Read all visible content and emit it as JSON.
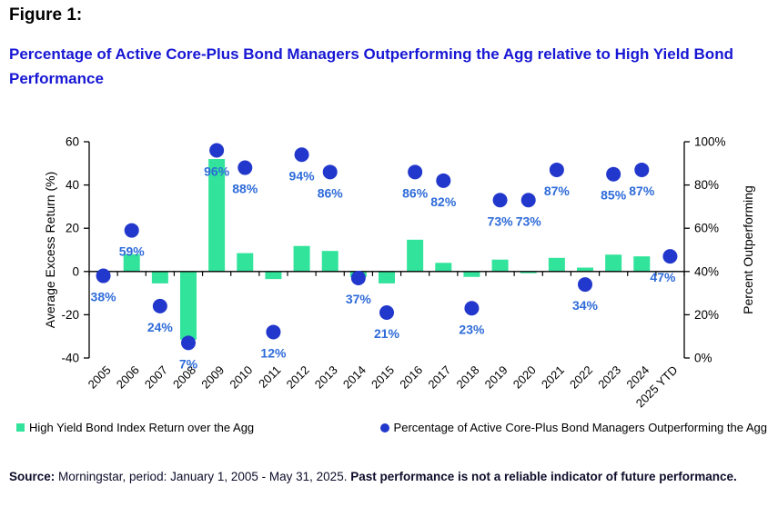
{
  "page": {
    "figure_label": "Figure 1:",
    "title": "Percentage of Active Core-Plus Bond Managers Outperforming the Agg relative to High Yield Bond Performance"
  },
  "colors": {
    "bar": "#31e39b",
    "dot": "#2237cb",
    "point_label": "#2e6bd9",
    "title_blue": "#1717d4",
    "axis_text": "#000000",
    "source_text": "#0d0d2b"
  },
  "chart_data": {
    "type": "combo-bar-scatter",
    "categories": [
      "2005",
      "2006",
      "2007",
      "2008",
      "2009",
      "2010",
      "2011",
      "2012",
      "2013",
      "2014",
      "2015",
      "2016",
      "2017",
      "2018",
      "2019",
      "2020",
      "2021",
      "2022",
      "2023",
      "2024",
      "2025 YTD"
    ],
    "series": [
      {
        "name": "High Yield Bond Index Return over the Agg",
        "type": "bar",
        "axis": "left",
        "values": [
          0.3,
          8,
          -5.5,
          -31.5,
          52,
          8.5,
          -3.5,
          11.8,
          9.5,
          -2.5,
          -5.5,
          14.7,
          4,
          -2.5,
          5.5,
          -0.8,
          6.3,
          1.8,
          7.8,
          7,
          0.3
        ]
      },
      {
        "name": "Percentage of Active Core-Plus Bond Managers Outperforming the Agg",
        "type": "scatter",
        "axis": "right",
        "values": [
          38,
          59,
          24,
          7,
          96,
          88,
          12,
          94,
          86,
          37,
          21,
          86,
          82,
          23,
          73,
          73,
          87,
          34,
          85,
          87,
          47
        ],
        "point_labels": [
          "38%",
          "59%",
          "24%",
          "7%",
          "96%",
          "88%",
          "12%",
          "94%",
          "86%",
          "37%",
          "21%",
          "86%",
          "82%",
          "23%",
          "73%",
          "73%",
          "87%",
          "34%",
          "85%",
          "87%",
          "47%"
        ],
        "label_dx": [
          0,
          0,
          0,
          0,
          0,
          0,
          0,
          0,
          0,
          0,
          0,
          0,
          0,
          0,
          0,
          0,
          0,
          0,
          0,
          0,
          -8
        ]
      }
    ],
    "left_axis": {
      "title": "Average Excess Return (%)",
      "min": -40,
      "max": 60,
      "tick_values": [
        60,
        40,
        20,
        0,
        -20,
        -40
      ],
      "tick_labels": [
        "60",
        "40",
        "20",
        "0",
        "-20",
        "-40"
      ]
    },
    "right_axis": {
      "title": "Percent Outperforming",
      "min": 0,
      "max": 100,
      "tick_values": [
        100,
        80,
        60,
        40,
        20,
        0
      ],
      "tick_labels": [
        "100%",
        "80%",
        "60%",
        "40%",
        "20%",
        "0%"
      ]
    },
    "grid": false,
    "legend_position": "bottom"
  },
  "source": {
    "label": "Source:",
    "body": " Morningstar, period: January 1, 2005 - May 31, 2025. ",
    "emphasis": "Past performance is not a reliable indicator of future performance."
  }
}
